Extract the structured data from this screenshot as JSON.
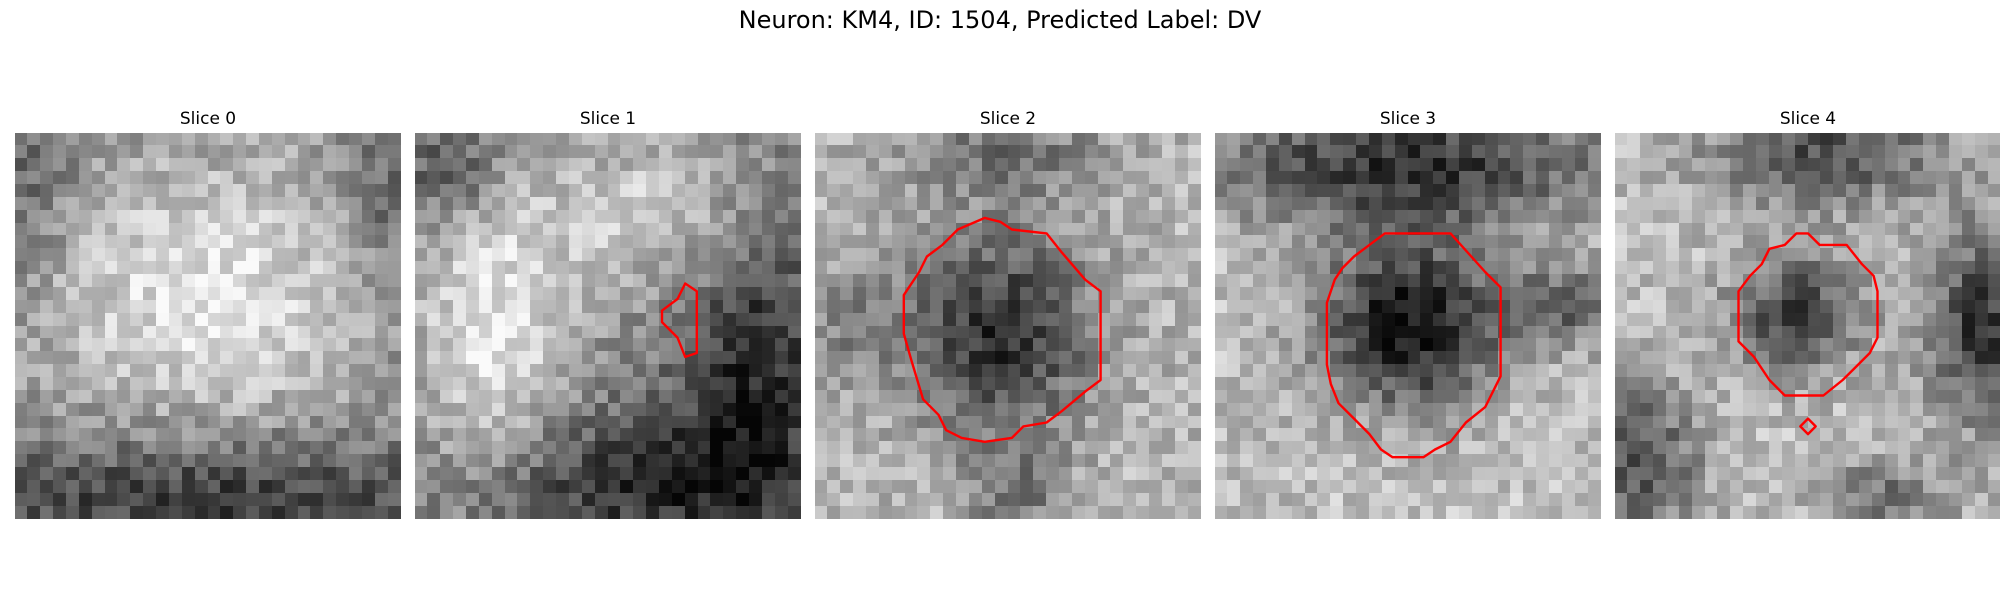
{
  "figure": {
    "title": "Neuron: KM4, ID: 1504, Predicted Label: DV"
  },
  "panels": [
    {
      "title": "Slice 0",
      "contours": []
    },
    {
      "title": "Slice 1",
      "contours": [
        [
          [
            0.7,
            0.39
          ],
          [
            0.73,
            0.41
          ],
          [
            0.73,
            0.57
          ],
          [
            0.7,
            0.58
          ],
          [
            0.68,
            0.53
          ],
          [
            0.64,
            0.49
          ],
          [
            0.64,
            0.46
          ],
          [
            0.68,
            0.43
          ]
        ]
      ]
    },
    {
      "title": "Slice 2",
      "contours": [
        [
          [
            0.44,
            0.22
          ],
          [
            0.48,
            0.23
          ],
          [
            0.51,
            0.25
          ],
          [
            0.6,
            0.26
          ],
          [
            0.64,
            0.31
          ],
          [
            0.7,
            0.38
          ],
          [
            0.74,
            0.41
          ],
          [
            0.74,
            0.64
          ],
          [
            0.7,
            0.67
          ],
          [
            0.64,
            0.72
          ],
          [
            0.6,
            0.75
          ],
          [
            0.54,
            0.76
          ],
          [
            0.51,
            0.79
          ],
          [
            0.44,
            0.8
          ],
          [
            0.38,
            0.79
          ],
          [
            0.34,
            0.77
          ],
          [
            0.32,
            0.73
          ],
          [
            0.28,
            0.69
          ],
          [
            0.25,
            0.59
          ],
          [
            0.23,
            0.52
          ],
          [
            0.23,
            0.42
          ],
          [
            0.27,
            0.36
          ],
          [
            0.29,
            0.32
          ],
          [
            0.33,
            0.29
          ],
          [
            0.37,
            0.25
          ]
        ]
      ]
    },
    {
      "title": "Slice 3",
      "contours": [
        [
          [
            0.44,
            0.26
          ],
          [
            0.61,
            0.26
          ],
          [
            0.7,
            0.36
          ],
          [
            0.74,
            0.4
          ],
          [
            0.74,
            0.63
          ],
          [
            0.7,
            0.71
          ],
          [
            0.65,
            0.75
          ],
          [
            0.61,
            0.8
          ],
          [
            0.57,
            0.82
          ],
          [
            0.54,
            0.84
          ],
          [
            0.46,
            0.84
          ],
          [
            0.43,
            0.82
          ],
          [
            0.4,
            0.78
          ],
          [
            0.36,
            0.74
          ],
          [
            0.32,
            0.7
          ],
          [
            0.3,
            0.65
          ],
          [
            0.29,
            0.6
          ],
          [
            0.29,
            0.52
          ],
          [
            0.29,
            0.44
          ],
          [
            0.31,
            0.38
          ],
          [
            0.33,
            0.35
          ],
          [
            0.36,
            0.32
          ],
          [
            0.4,
            0.29
          ]
        ]
      ]
    },
    {
      "title": "Slice 4",
      "contours": [
        [
          [
            0.47,
            0.26
          ],
          [
            0.5,
            0.26
          ],
          [
            0.53,
            0.29
          ],
          [
            0.6,
            0.29
          ],
          [
            0.64,
            0.34
          ],
          [
            0.67,
            0.37
          ],
          [
            0.68,
            0.41
          ],
          [
            0.68,
            0.53
          ],
          [
            0.66,
            0.57
          ],
          [
            0.62,
            0.61
          ],
          [
            0.59,
            0.64
          ],
          [
            0.54,
            0.68
          ],
          [
            0.44,
            0.68
          ],
          [
            0.4,
            0.64
          ],
          [
            0.36,
            0.58
          ],
          [
            0.32,
            0.54
          ],
          [
            0.32,
            0.41
          ],
          [
            0.35,
            0.37
          ],
          [
            0.38,
            0.34
          ],
          [
            0.4,
            0.3
          ],
          [
            0.44,
            0.29
          ]
        ],
        [
          [
            0.5,
            0.74
          ],
          [
            0.52,
            0.76
          ],
          [
            0.5,
            0.78
          ],
          [
            0.48,
            0.76
          ]
        ]
      ]
    }
  ]
}
